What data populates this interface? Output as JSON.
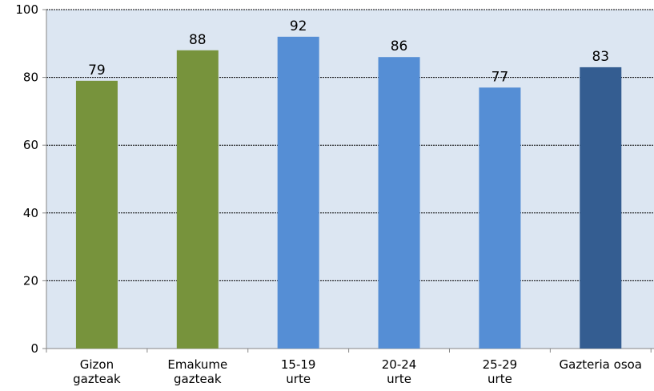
{
  "chart_data": {
    "type": "bar",
    "categories": [
      [
        "Gizon",
        "gazteak"
      ],
      [
        "Emakume",
        "gazteak"
      ],
      [
        "15-19",
        "urte"
      ],
      [
        "20-24",
        "urte"
      ],
      [
        "25-29",
        "urte"
      ],
      [
        "Gazteria osoa"
      ]
    ],
    "values": [
      79,
      88,
      92,
      86,
      77,
      83
    ],
    "data_labels": [
      "79",
      "88",
      "92",
      "86",
      "77",
      "83"
    ],
    "bar_colors": [
      "#77933c",
      "#77933c",
      "#558ed5",
      "#558ed5",
      "#558ed5",
      "#345d91"
    ],
    "ylim": [
      0,
      100
    ],
    "yticks": [
      0,
      20,
      40,
      60,
      80,
      100
    ],
    "ytick_labels": [
      "0",
      "20",
      "40",
      "60",
      "80",
      "100"
    ],
    "grid": true,
    "plot_background": "#dce6f2",
    "title": "",
    "xlabel": "",
    "ylabel": ""
  }
}
